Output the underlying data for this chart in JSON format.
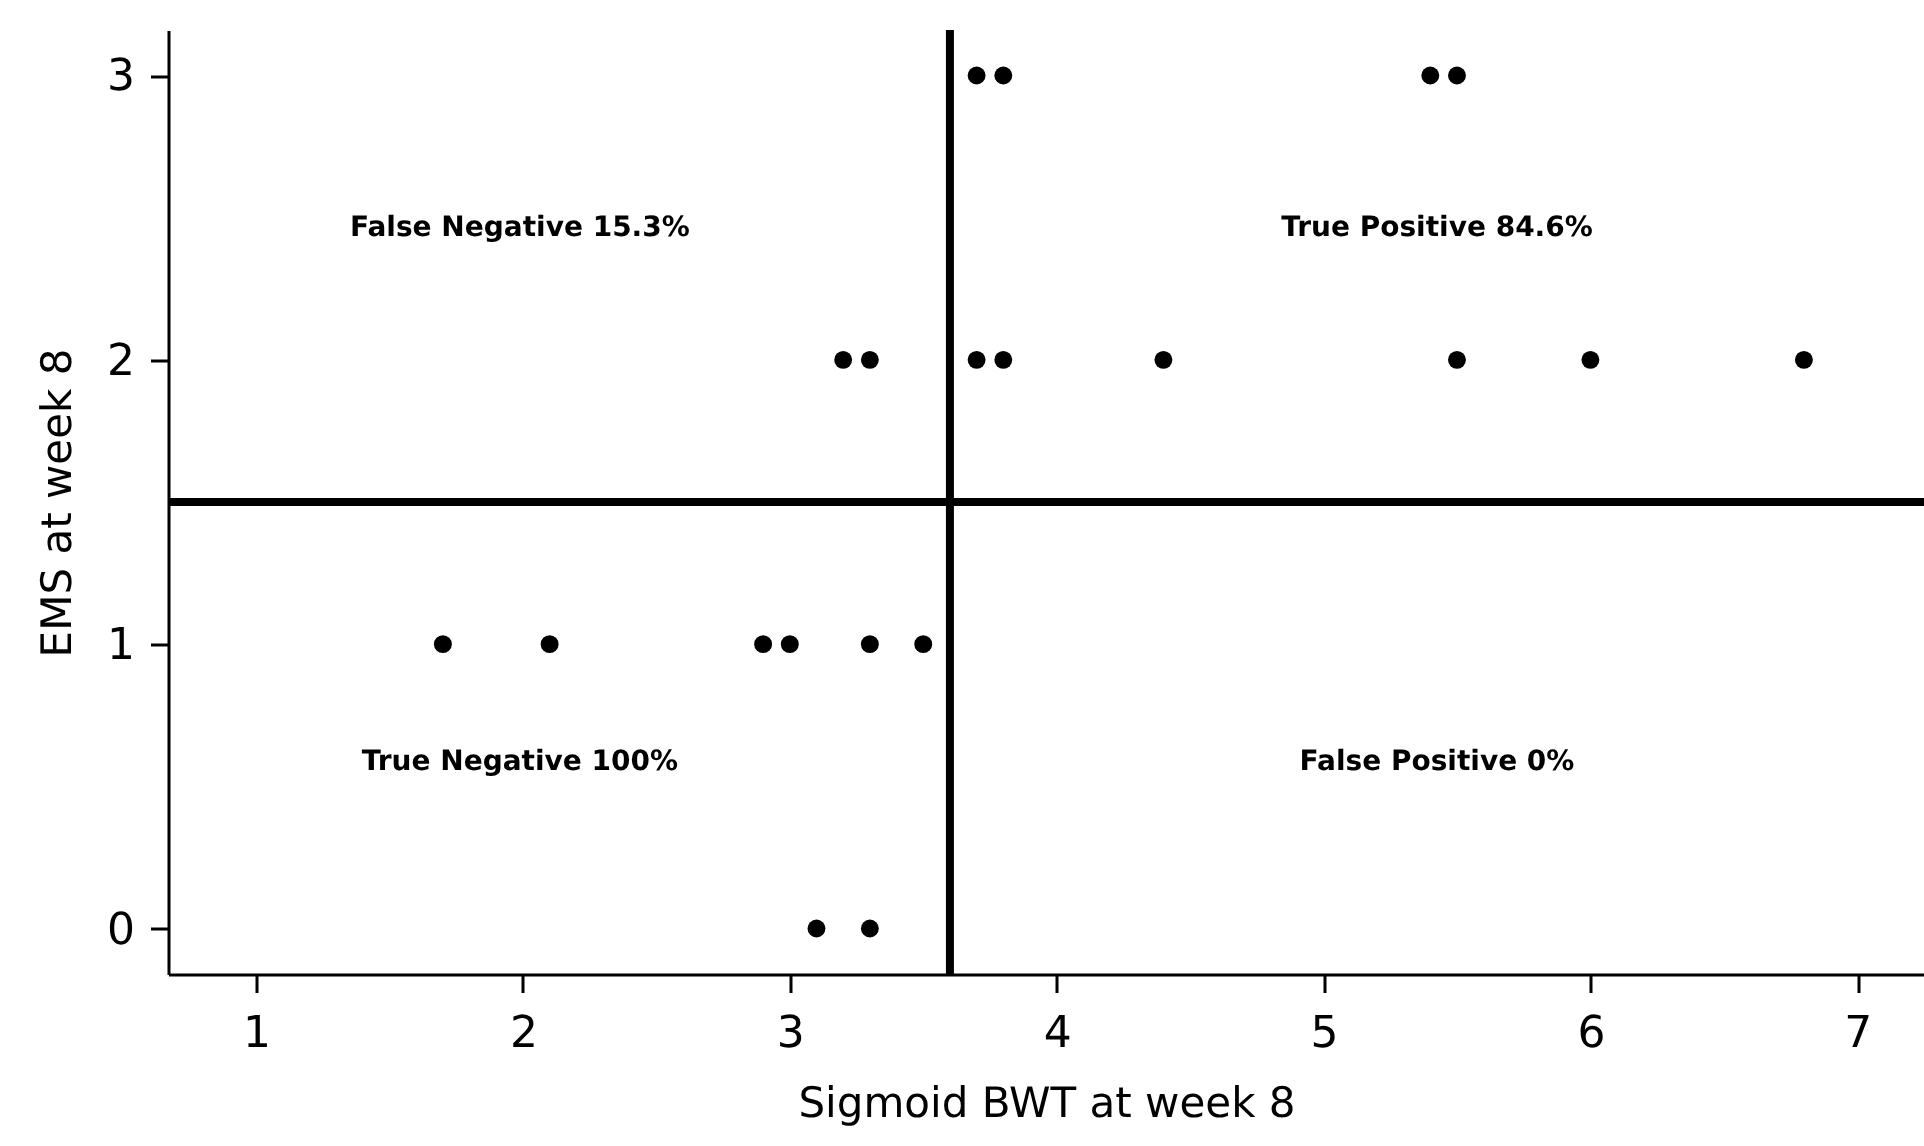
{
  "chart_data": {
    "type": "scatter",
    "xlabel": "Sigmoid BWT at week 8",
    "ylabel": "EMS at week 8",
    "x": [
      3.7,
      3.8,
      5.4,
      5.5,
      3.2,
      3.3,
      3.7,
      3.8,
      4.4,
      5.5,
      6.0,
      6.8,
      1.7,
      2.1,
      2.9,
      3.0,
      3.3,
      3.5,
      3.1,
      3.3
    ],
    "values": [
      3,
      3,
      3,
      3,
      2,
      2,
      2,
      2,
      2,
      2,
      2,
      2,
      1,
      1,
      1,
      1,
      1,
      1,
      0,
      0
    ],
    "color": "#000000",
    "marker": "circle",
    "xlim": [
      0.67,
      7.25
    ],
    "xticks": [
      1,
      2,
      3,
      4,
      5,
      6,
      7
    ],
    "ylim": [
      -0.16,
      3.16
    ],
    "yticks": [
      0,
      1,
      2,
      3
    ],
    "grid": false,
    "ref_lines": [
      {
        "axis": "x",
        "value": 3.6,
        "color": "#000000"
      },
      {
        "axis": "y",
        "value": 1.5,
        "color": "#000000"
      }
    ],
    "annotations": [
      "False Negative 15.3%",
      "True Positive 84.6%",
      "True Negative 100%",
      "False Positive 0%"
    ]
  }
}
